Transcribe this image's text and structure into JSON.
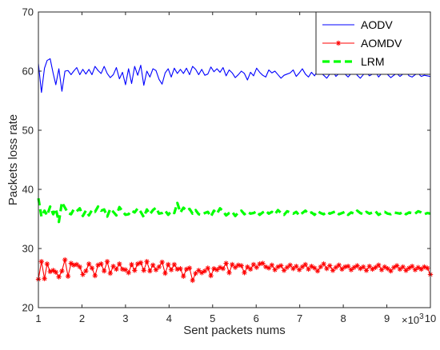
{
  "chart_data": {
    "type": "line",
    "title": "",
    "xlabel": "Sent packets nums",
    "ylabel": "Packets loss rate",
    "x_multiplier": "×10",
    "x_multiplier_exp": "3",
    "xlim": [
      1,
      10
    ],
    "ylim": [
      20,
      70
    ],
    "x_ticks": [
      "1",
      "2",
      "3",
      "4",
      "5",
      "6",
      "7",
      "8",
      "9",
      "10"
    ],
    "y_ticks": [
      "20",
      "30",
      "40",
      "50",
      "60",
      "70"
    ],
    "grid": false,
    "legend_position": "top-right",
    "x": [
      1.0,
      1.07,
      1.14,
      1.2,
      1.27,
      1.34,
      1.4,
      1.47,
      1.54,
      1.61,
      1.68,
      1.75,
      1.81,
      1.88,
      1.95,
      2.02,
      2.09,
      2.16,
      2.23,
      2.3,
      2.37,
      2.44,
      2.51,
      2.58,
      2.65,
      2.72,
      2.79,
      2.86,
      2.93,
      3.0,
      3.07,
      3.14,
      3.21,
      3.28,
      3.35,
      3.42,
      3.49,
      3.56,
      3.63,
      3.7,
      3.77,
      3.84,
      3.91,
      3.98,
      4.05,
      4.12,
      4.19,
      4.26,
      4.33,
      4.4,
      4.47,
      4.54,
      4.61,
      4.68,
      4.75,
      4.82,
      4.89,
      4.96,
      5.03,
      5.1,
      5.17,
      5.24,
      5.31,
      5.38,
      5.45,
      5.52,
      5.59,
      5.66,
      5.73,
      5.8,
      5.87,
      5.94,
      6.01,
      6.08,
      6.15,
      6.22,
      6.29,
      6.36,
      6.43,
      6.5,
      6.57,
      6.64,
      6.71,
      6.78,
      6.85,
      6.92,
      6.99,
      7.06,
      7.13,
      7.2,
      7.27,
      7.34,
      7.41,
      7.48,
      7.55,
      7.62,
      7.69,
      7.76,
      7.83,
      7.9,
      7.97,
      8.04,
      8.11,
      8.18,
      8.25,
      8.32,
      8.39,
      8.46,
      8.53,
      8.6,
      8.67,
      8.74,
      8.81,
      8.88,
      8.95,
      9.02,
      9.09,
      9.16,
      9.23,
      9.3,
      9.37,
      9.44,
      9.51,
      9.58,
      9.65,
      9.72,
      9.79,
      9.86,
      9.93,
      10.0
    ],
    "series": [
      {
        "name": "AODV",
        "color": "#0000ff",
        "style": "solid",
        "marker": "none",
        "values": [
          61.3,
          56.4,
          60.5,
          61.8,
          62.1,
          59.6,
          57.7,
          60.4,
          56.6,
          60.0,
          60.1,
          59.4,
          60.0,
          60.6,
          59.4,
          60.3,
          59.5,
          60.3,
          59.4,
          60.8,
          60.1,
          59.6,
          60.8,
          59.6,
          58.9,
          59.4,
          60.6,
          58.7,
          59.8,
          57.7,
          60.4,
          57.9,
          60.8,
          59.3,
          61.0,
          57.6,
          60.0,
          59.0,
          60.4,
          60.1,
          58.6,
          57.8,
          59.7,
          60.4,
          59.0,
          60.5,
          59.6,
          60.3,
          59.6,
          60.5,
          59.4,
          60.8,
          60.3,
          59.4,
          60.3,
          59.3,
          59.5,
          60.7,
          59.9,
          60.4,
          59.8,
          60.6,
          59.2,
          60.2,
          59.7,
          58.9,
          59.4,
          60.0,
          59.6,
          58.5,
          59.8,
          59.2,
          60.5,
          59.8,
          59.3,
          59.0,
          60.2,
          59.7,
          60.0,
          59.4,
          58.8,
          59.3,
          59.5,
          59.7,
          60.2,
          59.1,
          59.7,
          60.4,
          59.5,
          59.0,
          59.8,
          59.2,
          60.1,
          59.7,
          59.3,
          58.8,
          59.5,
          60.0,
          59.1,
          59.6,
          60.2,
          59.5,
          59.0,
          59.6,
          60.1,
          59.3,
          58.8,
          59.4,
          59.8,
          59.2,
          59.5,
          59.9,
          59.0,
          59.6,
          60.1,
          59.4,
          58.9,
          59.3,
          59.6,
          59.1,
          59.5,
          59.9,
          59.2,
          59.0,
          59.4,
          59.6,
          59.1,
          59.3,
          59.2,
          59.1
        ]
      },
      {
        "name": "AOMDV",
        "color": "#ff0000",
        "style": "solid",
        "marker": "asterisk",
        "values": [
          24.8,
          27.8,
          24.9,
          27.4,
          26.1,
          26.3,
          26.0,
          25.2,
          26.2,
          28.1,
          25.3,
          27.5,
          27.2,
          27.3,
          26.9,
          25.6,
          26.2,
          27.4,
          26.7,
          25.4,
          27.2,
          27.4,
          26.2,
          27.8,
          25.8,
          27.0,
          26.5,
          27.4,
          26.5,
          26.4,
          25.9,
          27.3,
          26.3,
          27.4,
          27.6,
          26.3,
          27.8,
          26.2,
          27.2,
          26.4,
          26.9,
          27.7,
          25.8,
          27.3,
          26.4,
          27.3,
          26.5,
          26.6,
          25.3,
          26.5,
          26.7,
          24.6,
          25.8,
          26.3,
          25.9,
          26.2,
          26.7,
          25.4,
          26.6,
          26.4,
          26.8,
          26.6,
          27.5,
          25.9,
          27.3,
          26.8,
          27.2,
          27.1,
          25.9,
          26.9,
          26.5,
          27.3,
          26.8,
          27.4,
          27.5,
          26.9,
          26.7,
          27.2,
          26.4,
          26.9,
          27.1,
          26.3,
          26.8,
          27.2,
          26.6,
          27.0,
          26.4,
          26.9,
          27.3,
          26.5,
          27.0,
          26.7,
          26.2,
          26.9,
          27.4,
          26.6,
          27.1,
          26.3,
          26.8,
          27.2,
          26.5,
          26.9,
          27.0,
          26.4,
          26.8,
          27.1,
          26.6,
          26.9,
          26.3,
          27.0,
          26.5,
          26.8,
          27.2,
          26.4,
          26.9,
          26.6,
          26.2,
          26.8,
          27.1,
          26.5,
          26.9,
          26.3,
          26.7,
          27.0,
          26.4,
          26.8,
          26.5,
          26.9,
          26.7,
          25.6
        ]
      },
      {
        "name": "LRM",
        "color": "#00ff00",
        "style": "dashed",
        "marker": "none",
        "values": [
          38.5,
          35.4,
          36.4,
          35.6,
          37.1,
          35.8,
          36.7,
          34.5,
          37.8,
          36.9,
          36.0,
          35.8,
          36.6,
          36.3,
          36.8,
          35.5,
          36.4,
          35.6,
          36.5,
          36.2,
          37.1,
          36.4,
          36.6,
          35.4,
          36.7,
          36.2,
          35.6,
          37.0,
          36.3,
          35.7,
          35.8,
          36.4,
          36.1,
          36.8,
          36.2,
          35.3,
          36.6,
          35.8,
          36.5,
          36.9,
          35.9,
          36.0,
          36.4,
          35.7,
          36.3,
          36.0,
          37.7,
          36.1,
          36.9,
          36.4,
          36.7,
          35.9,
          36.5,
          35.8,
          35.7,
          36.0,
          36.2,
          35.4,
          36.4,
          35.9,
          36.8,
          36.3,
          35.6,
          36.0,
          36.2,
          35.5,
          36.1,
          36.4,
          35.8,
          36.2,
          35.9,
          36.0,
          36.3,
          35.7,
          36.1,
          36.4,
          35.9,
          36.2,
          35.8,
          36.5,
          36.0,
          35.7,
          36.3,
          36.1,
          35.9,
          36.2,
          35.6,
          36.0,
          36.4,
          35.9,
          36.1,
          35.7,
          36.3,
          36.0,
          35.8,
          36.2,
          35.9,
          36.1,
          36.3,
          35.8,
          36.0,
          36.2,
          35.7,
          36.1,
          35.9,
          36.4,
          36.0,
          35.8,
          36.2,
          35.9,
          36.1,
          36.3,
          35.7,
          36.0,
          36.2,
          35.9,
          35.8,
          36.1,
          36.0,
          35.9,
          36.2,
          35.8,
          36.1,
          36.0,
          35.9,
          36.3,
          36.1,
          35.8,
          36.0,
          35.9
        ]
      }
    ]
  }
}
